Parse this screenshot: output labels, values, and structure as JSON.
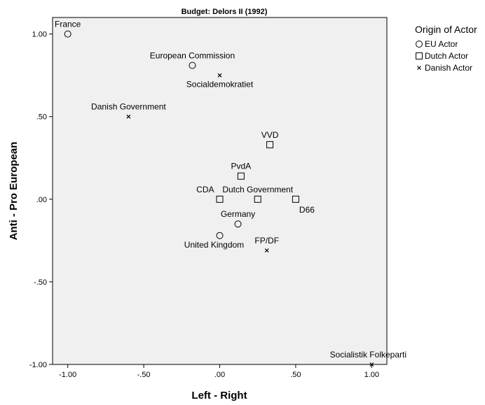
{
  "chart_data": {
    "type": "scatter",
    "title": "Budget: Delors II (1992)",
    "xlabel": "Left - Right",
    "ylabel": "Anti - Pro European",
    "xlim": [
      -1.1,
      1.1
    ],
    "ylim": [
      -1.0,
      1.1
    ],
    "xticks": [
      -1.0,
      -0.5,
      0.0,
      0.5,
      1.0
    ],
    "xtick_labels": [
      "-1.00",
      "-.50",
      ".00",
      ".50",
      "1.00"
    ],
    "yticks": [
      1.0,
      0.5,
      0.0,
      -0.5,
      -1.0
    ],
    "ytick_labels": [
      "1.00",
      ".50",
      ".00",
      "-.50",
      "-1.00"
    ],
    "grid": false,
    "plot_background": "#f0f0f0",
    "legend": {
      "title": "Origin of Actor",
      "position": "right",
      "entries": [
        {
          "marker": "circle",
          "label": "EU Actor"
        },
        {
          "marker": "square",
          "label": "Dutch Actor"
        },
        {
          "marker": "cross",
          "label": "Danish Actor"
        }
      ]
    },
    "points": [
      {
        "label": "France",
        "x": -1.0,
        "y": 1.0,
        "group": "circle",
        "label_pos": "above"
      },
      {
        "label": "European Commission",
        "x": -0.18,
        "y": 0.81,
        "group": "circle",
        "label_pos": "above"
      },
      {
        "label": "Socialdemokratiet",
        "x": 0.0,
        "y": 0.75,
        "group": "cross",
        "label_pos": "below"
      },
      {
        "label": "Danish Government",
        "x": -0.6,
        "y": 0.5,
        "group": "cross",
        "label_pos": "above"
      },
      {
        "label": "VVD",
        "x": 0.33,
        "y": 0.33,
        "group": "square",
        "label_pos": "above"
      },
      {
        "label": "PvdA",
        "x": 0.14,
        "y": 0.14,
        "group": "square",
        "label_pos": "above"
      },
      {
        "label": "CDA",
        "x": 0.0,
        "y": 0.0,
        "group": "square",
        "label_pos": "above-left"
      },
      {
        "label": "Dutch Government",
        "x": 0.25,
        "y": 0.0,
        "group": "square",
        "label_pos": "above"
      },
      {
        "label": "D66",
        "x": 0.5,
        "y": 0.0,
        "group": "square",
        "label_pos": "below-right"
      },
      {
        "label": "Germany",
        "x": 0.12,
        "y": -0.15,
        "group": "circle",
        "label_pos": "above"
      },
      {
        "label": "United Kingdom",
        "x": 0.0,
        "y": -0.22,
        "group": "circle",
        "label_pos": "below-left"
      },
      {
        "label": "FP/DF",
        "x": 0.31,
        "y": -0.31,
        "group": "cross",
        "label_pos": "above"
      },
      {
        "label": "Socialistik Folkeparti",
        "x": 1.0,
        "y": -1.0,
        "group": "cross",
        "label_pos": "above"
      }
    ]
  }
}
